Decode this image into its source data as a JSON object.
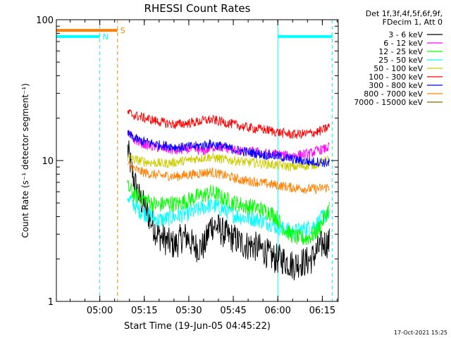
{
  "chart_data": {
    "type": "line",
    "title": "RHESSI Count Rates",
    "xlabel": "Start Time (19-Jun-05 04:45:22)",
    "ylabel": "Count Rate (s⁻¹ detector segment⁻¹)",
    "x_unit": "minutes after 04:45:22",
    "xlim": [
      0,
      95
    ],
    "ylim": [
      1,
      100
    ],
    "yscale": "log",
    "x_ticks": [
      {
        "x": 14.63,
        "label": "05:00"
      },
      {
        "x": 29.63,
        "label": "05:15"
      },
      {
        "x": 44.63,
        "label": "05:30"
      },
      {
        "x": 59.63,
        "label": "05:45"
      },
      {
        "x": 74.63,
        "label": "06:00"
      },
      {
        "x": 89.63,
        "label": "06:15"
      }
    ],
    "y_ticks": [
      {
        "y": 1,
        "label": "1"
      },
      {
        "y": 10,
        "label": "10"
      },
      {
        "y": 100,
        "label": "100"
      }
    ],
    "legend": {
      "placement": "right",
      "header": [
        "Det 1f,3f,4f,5f,6f,9f,",
        "FDecim 1, Att 0"
      ]
    },
    "series": [
      {
        "name": "3 - 6 keV",
        "color": "#000000",
        "x": [
          24,
          26,
          28,
          30,
          32,
          34,
          36,
          38,
          40,
          42,
          44,
          46,
          48,
          50,
          52,
          54,
          56,
          58,
          60,
          62,
          64,
          66,
          68,
          70,
          72,
          74,
          76,
          78,
          80,
          82,
          84,
          86,
          88,
          90,
          92
        ],
        "y": [
          12,
          7.5,
          5.4,
          4.6,
          3.7,
          3.0,
          2.8,
          2.6,
          2.5,
          2.8,
          2.9,
          2.5,
          2.4,
          2.5,
          3.5,
          3.4,
          3.1,
          2.9,
          2.8,
          2.6,
          2.5,
          2.5,
          2.4,
          2.3,
          2.1,
          2.0,
          2.0,
          1.9,
          1.8,
          1.9,
          1.9,
          2.0,
          2.3,
          2.6,
          2.6
        ]
      },
      {
        "name": "6 - 12 keV",
        "color": "#ff00ff",
        "x": [
          24,
          26,
          28,
          30,
          32,
          34,
          36,
          38,
          40,
          42,
          44,
          46,
          48,
          50,
          52,
          54,
          56,
          58,
          60,
          62,
          64,
          66,
          68,
          70,
          72,
          74,
          76,
          78,
          80,
          82,
          84,
          86,
          88,
          90,
          92
        ],
        "y": [
          15.5,
          14.2,
          13.5,
          13.0,
          12.6,
          12.4,
          12.2,
          12.0,
          11.7,
          11.9,
          12.1,
          12.0,
          11.8,
          11.7,
          12.3,
          12.6,
          12.3,
          12.1,
          11.9,
          11.6,
          11.5,
          11.6,
          11.5,
          11.2,
          11.1,
          11.2,
          11.0,
          10.8,
          10.9,
          11.0,
          11.1,
          11.3,
          11.8,
          12.0,
          12.5
        ]
      },
      {
        "name": "12 - 25 keV",
        "color": "#00ff00",
        "x": [
          24,
          26,
          28,
          30,
          32,
          34,
          36,
          38,
          40,
          42,
          44,
          46,
          48,
          50,
          52,
          54,
          56,
          58,
          60,
          62,
          64,
          66,
          68,
          70,
          72,
          74,
          76,
          78,
          80,
          82,
          84,
          86,
          88,
          90,
          92
        ],
        "y": [
          6.5,
          5.8,
          5.5,
          5.3,
          5.0,
          4.8,
          4.9,
          5.0,
          4.9,
          5.0,
          5.2,
          5.4,
          5.6,
          5.7,
          5.9,
          5.8,
          5.4,
          5.2,
          5.0,
          4.9,
          4.7,
          4.7,
          4.6,
          4.4,
          4.3,
          4.0,
          3.4,
          3.1,
          2.9,
          2.8,
          2.8,
          2.9,
          3.2,
          3.8,
          4.6
        ]
      },
      {
        "name": "25 - 50 keV",
        "color": "#00ffff",
        "x": [
          24,
          26,
          28,
          30,
          32,
          34,
          36,
          38,
          40,
          42,
          44,
          46,
          48,
          50,
          52,
          54,
          56,
          58,
          60,
          62,
          64,
          66,
          68,
          70,
          72,
          74,
          76,
          78,
          80,
          82,
          84,
          86,
          88,
          90,
          92
        ],
        "y": [
          5.6,
          4.9,
          4.4,
          4.2,
          4.0,
          3.8,
          3.8,
          3.9,
          4.0,
          4.1,
          4.2,
          4.3,
          4.5,
          4.7,
          4.8,
          4.7,
          4.5,
          4.3,
          4.1,
          4.0,
          3.9,
          3.9,
          3.8,
          3.7,
          3.6,
          3.4,
          3.3,
          3.2,
          3.1,
          3.2,
          3.3,
          3.4,
          3.6,
          4.0,
          4.3
        ]
      },
      {
        "name": "50 - 100 keV",
        "color": "#cccc00",
        "x": [
          24,
          26,
          28,
          30,
          32,
          34,
          36,
          38,
          40,
          42,
          44,
          46,
          48,
          50,
          52,
          54,
          56,
          58,
          60,
          62,
          64,
          66,
          68,
          70,
          72,
          74,
          76,
          78,
          80,
          82,
          84,
          86,
          88,
          90,
          92
        ],
        "y": [
          10.5,
          10.2,
          10.0,
          9.8,
          9.7,
          9.6,
          9.5,
          9.6,
          9.7,
          9.9,
          10.0,
          10.2,
          10.4,
          10.5,
          10.6,
          10.4,
          10.2,
          10.1,
          10.0,
          9.9,
          9.7,
          9.7,
          9.6,
          9.5,
          9.4,
          9.3,
          9.2,
          9.1,
          9.0,
          9.1,
          9.2,
          9.3,
          9.5,
          9.8,
          10.2
        ]
      },
      {
        "name": "100 - 300 keV",
        "color": "#ff0000",
        "x": [
          24,
          26,
          28,
          30,
          32,
          34,
          36,
          38,
          40,
          42,
          44,
          46,
          48,
          50,
          52,
          54,
          56,
          58,
          60,
          62,
          64,
          66,
          68,
          70,
          72,
          74,
          76,
          78,
          80,
          82,
          84,
          86,
          88,
          90,
          92
        ],
        "y": [
          22,
          21,
          20.5,
          20,
          19.5,
          19,
          18.6,
          18.3,
          18.0,
          18.2,
          18.4,
          18.6,
          18.9,
          19.3,
          19.5,
          19.2,
          18.8,
          18.4,
          18.0,
          17.6,
          17.2,
          17.0,
          16.8,
          16.6,
          16.3,
          16.0,
          15.7,
          15.5,
          15.3,
          15.4,
          15.5,
          15.7,
          16.0,
          16.5,
          17.5
        ]
      },
      {
        "name": "300 - 800 keV",
        "color": "#0000ff",
        "x": [
          24,
          26,
          28,
          30,
          32,
          34,
          36,
          38,
          40,
          42,
          44,
          46,
          48,
          50,
          52,
          54,
          56,
          58,
          60,
          62,
          64,
          66,
          68,
          70,
          72,
          74,
          76,
          78,
          80,
          82,
          84,
          86,
          88,
          90,
          92
        ],
        "y": [
          15.5,
          14.5,
          13.9,
          13.6,
          13.3,
          13.0,
          12.8,
          12.7,
          12.5,
          12.4,
          12.5,
          12.6,
          12.7,
          12.9,
          13.1,
          12.9,
          12.6,
          12.3,
          12.0,
          11.7,
          11.5,
          11.4,
          11.2,
          11.0,
          10.9,
          10.8,
          10.6,
          10.4,
          10.2,
          10.0,
          9.9,
          9.8,
          9.8,
          9.7,
          9.6
        ]
      },
      {
        "name": "800 - 7000 keV",
        "color": "#ff8000",
        "x": [
          24,
          26,
          28,
          30,
          32,
          34,
          36,
          38,
          40,
          42,
          44,
          46,
          48,
          50,
          52,
          54,
          56,
          58,
          60,
          62,
          64,
          66,
          68,
          70,
          72,
          74,
          76,
          78,
          80,
          82,
          84,
          86,
          88,
          90,
          92
        ],
        "y": [
          9.5,
          8.8,
          8.4,
          8.2,
          8.0,
          7.9,
          7.8,
          7.8,
          7.7,
          7.8,
          7.9,
          8.0,
          8.1,
          8.2,
          8.3,
          8.1,
          7.9,
          7.7,
          7.5,
          7.3,
          7.2,
          7.1,
          7.0,
          6.9,
          6.8,
          6.7,
          6.6,
          6.5,
          6.4,
          6.4,
          6.3,
          6.3,
          6.3,
          6.4,
          6.5
        ]
      },
      {
        "name": "7000 - 15000 keV",
        "color": "#8b6508",
        "x": [],
        "y": []
      }
    ],
    "state_bars": [
      {
        "label": "N",
        "color": "#00ffff",
        "y": 76,
        "segments": [
          [
            0,
            14.63
          ],
          [
            74.63,
            93.0
          ]
        ]
      },
      {
        "label": "S",
        "color": "#ff8000",
        "y": 84,
        "segments": [
          [
            0,
            20.6
          ]
        ]
      }
    ],
    "vlines": [
      {
        "x": 14.63,
        "color": "#00ffff",
        "style": "dashed"
      },
      {
        "x": 74.63,
        "color": "#00ffff",
        "style": "solid"
      },
      {
        "x": 93.0,
        "color": "#00ffff",
        "style": "dashed"
      },
      {
        "x": 20.6,
        "color": "#ff8000",
        "style": "dashed"
      }
    ],
    "footer": "17-Oct-2021 15:25"
  }
}
